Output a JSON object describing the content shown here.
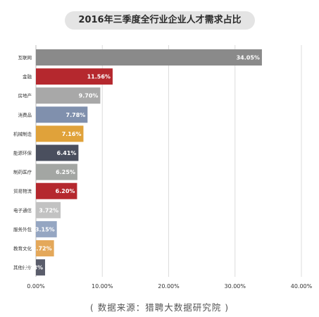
{
  "chart_data": {
    "type": "bar",
    "orientation": "horizontal",
    "title": "2016年三季度全行业企业人才需求占比",
    "categories": [
      "互联网",
      "金融",
      "房地产",
      "消费品",
      "机械制造",
      "能源环保",
      "制药医疗",
      "贸易物流",
      "电子通信",
      "服务外包",
      "教育文化",
      "其他行业"
    ],
    "values": [
      34.05,
      11.56,
      9.7,
      7.78,
      7.16,
      6.41,
      6.25,
      6.2,
      3.72,
      3.15,
      2.72,
      1.38
    ],
    "value_labels": [
      "34.05%",
      "11.56%",
      "9.70%",
      "7.78%",
      "7.16%",
      "6.41%",
      "6.25%",
      "6.20%",
      "3.72%",
      "3.15%",
      "2.72%",
      "1.38%"
    ],
    "bar_colors": [
      "#8a8a8a",
      "#b5282e",
      "#a8a8a8",
      "#8090ad",
      "#e0a23a",
      "#4a4f5e",
      "#a3a6a3",
      "#b5282e",
      "#c2c2c2",
      "#95a6c2",
      "#e4a85a",
      "#5a5d6b"
    ],
    "xlim": [
      0,
      40
    ],
    "x_ticks": [
      "0.00%",
      "10.00%",
      "20.00%",
      "30.00%",
      "40.00%"
    ],
    "grid": true,
    "xlabel": "",
    "ylabel": ""
  },
  "footer": {
    "source": "( 数据来源：猎聘大数据研究院 )"
  }
}
